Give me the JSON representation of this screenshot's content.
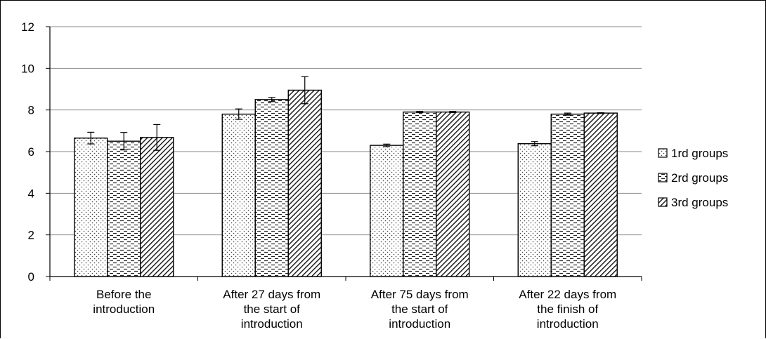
{
  "chart_data": {
    "type": "bar",
    "title": "",
    "xlabel": "",
    "ylabel": "",
    "ylim": [
      0,
      12
    ],
    "yticks": [
      0,
      2,
      4,
      6,
      8,
      10,
      12
    ],
    "grid": true,
    "legend_position": "right",
    "categories": [
      [
        "Before the",
        "introduction"
      ],
      [
        "After 27 days from",
        "the start of",
        "introduction"
      ],
      [
        "After 75 days from",
        "the start of",
        "introduction"
      ],
      [
        "After 22 days from",
        "the finish of",
        "introduction"
      ]
    ],
    "series": [
      {
        "name": "1rd groups",
        "pattern": "dots",
        "values": [
          6.65,
          7.8,
          6.3,
          6.38
        ],
        "errors": [
          0.28,
          0.25,
          0.06,
          0.1
        ]
      },
      {
        "name": "2rd groups",
        "pattern": "dashes",
        "values": [
          6.5,
          8.5,
          7.9,
          7.8
        ],
        "errors": [
          0.42,
          0.1,
          0.03,
          0.05
        ]
      },
      {
        "name": "3rd groups",
        "pattern": "diagonal",
        "values": [
          6.68,
          8.95,
          7.9,
          7.85
        ],
        "errors": [
          0.62,
          0.65,
          0.03,
          0.02
        ]
      }
    ]
  }
}
